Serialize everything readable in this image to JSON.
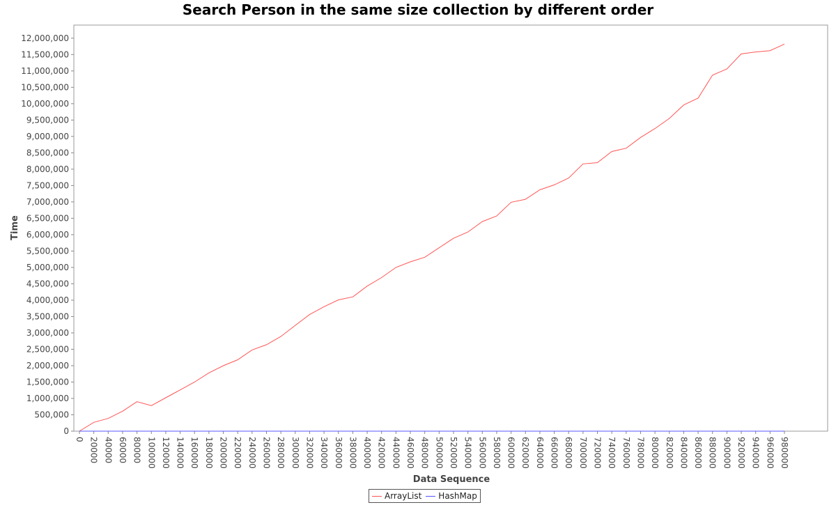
{
  "chart_data": {
    "type": "line",
    "title": "Search Person in the same size collection by different order",
    "xlabel": "Data Sequence",
    "ylabel": "Time",
    "x": [
      0,
      20000,
      40000,
      60000,
      80000,
      100000,
      120000,
      140000,
      160000,
      180000,
      200000,
      220000,
      240000,
      260000,
      280000,
      300000,
      320000,
      340000,
      360000,
      380000,
      400000,
      420000,
      440000,
      460000,
      480000,
      500000,
      520000,
      540000,
      560000,
      580000,
      600000,
      620000,
      640000,
      660000,
      680000,
      700000,
      720000,
      740000,
      760000,
      780000,
      800000,
      820000,
      840000,
      860000,
      880000,
      900000,
      920000,
      940000,
      960000,
      980000
    ],
    "x_tick_labels": [
      "0",
      "20000",
      "40000",
      "60000",
      "80000",
      "100000",
      "120000",
      "140000",
      "160000",
      "180000",
      "200000",
      "220000",
      "240000",
      "260000",
      "280000",
      "300000",
      "320000",
      "340000",
      "360000",
      "380000",
      "400000",
      "420000",
      "440000",
      "460000",
      "480000",
      "500000",
      "520000",
      "540000",
      "560000",
      "580000",
      "600000",
      "620000",
      "640000",
      "660000",
      "680000",
      "700000",
      "720000",
      "740000",
      "760000",
      "780000",
      "800000",
      "820000",
      "840000",
      "860000",
      "880000",
      "900000",
      "920000",
      "940000",
      "960000",
      "980000"
    ],
    "y_ticks": [
      0,
      500000,
      1000000,
      1500000,
      2000000,
      2500000,
      3000000,
      3500000,
      4000000,
      4500000,
      5000000,
      5500000,
      6000000,
      6500000,
      7000000,
      7500000,
      8000000,
      8500000,
      9000000,
      9500000,
      10000000,
      10500000,
      11000000,
      11500000,
      12000000
    ],
    "y_tick_labels": [
      "0",
      "500,000",
      "1,000,000",
      "1,500,000",
      "2,000,000",
      "2,500,000",
      "3,000,000",
      "3,500,000",
      "4,000,000",
      "4,500,000",
      "5,000,000",
      "5,500,000",
      "6,000,000",
      "6,500,000",
      "7,000,000",
      "7,500,000",
      "8,000,000",
      "8,500,000",
      "9,000,000",
      "9,500,000",
      "10,000,000",
      "10,500,000",
      "11,000,000",
      "11,500,000",
      "12,000,000"
    ],
    "ylim": [
      0,
      12400000
    ],
    "grid": false,
    "legend_position": "bottom-center",
    "series": [
      {
        "name": "ArrayList",
        "color": "#ff5555",
        "values": [
          0,
          270000,
          390000,
          610000,
          900000,
          780000,
          1020000,
          1260000,
          1500000,
          1780000,
          2000000,
          2180000,
          2480000,
          2640000,
          2890000,
          3230000,
          3560000,
          3800000,
          4010000,
          4100000,
          4430000,
          4690000,
          5000000,
          5170000,
          5310000,
          5600000,
          5890000,
          6080000,
          6400000,
          6570000,
          6990000,
          7080000,
          7370000,
          7520000,
          7730000,
          8160000,
          8200000,
          8540000,
          8640000,
          8970000,
          9240000,
          9550000,
          9960000,
          10170000,
          10870000,
          11060000,
          11520000,
          11580000,
          11620000,
          11820000
        ]
      },
      {
        "name": "HashMap",
        "color": "#5555ff",
        "values": [
          0,
          0,
          0,
          0,
          0,
          0,
          0,
          0,
          0,
          0,
          0,
          0,
          0,
          0,
          0,
          0,
          0,
          0,
          0,
          0,
          0,
          0,
          0,
          0,
          0,
          0,
          0,
          0,
          0,
          0,
          0,
          0,
          0,
          0,
          0,
          0,
          0,
          0,
          0,
          0,
          0,
          0,
          0,
          0,
          0,
          0,
          0,
          0,
          0,
          0
        ]
      }
    ]
  }
}
